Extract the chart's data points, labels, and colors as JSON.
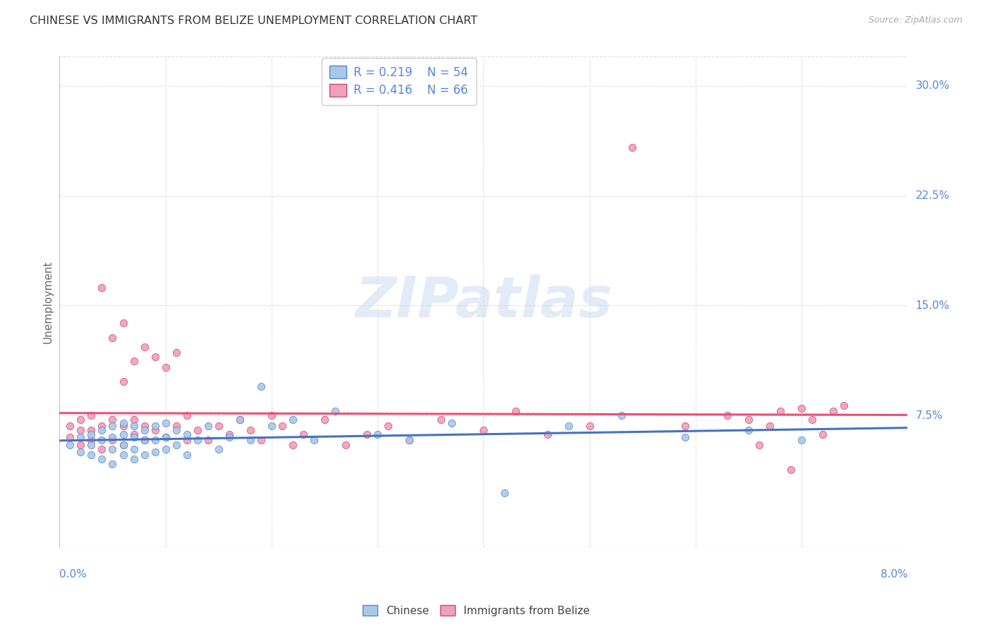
{
  "title": "CHINESE VS IMMIGRANTS FROM BELIZE UNEMPLOYMENT CORRELATION CHART",
  "source": "Source: ZipAtlas.com",
  "ylabel": "Unemployment",
  "ytick_labels": [
    "7.5%",
    "15.0%",
    "22.5%",
    "30.0%"
  ],
  "ytick_values": [
    0.075,
    0.15,
    0.225,
    0.3
  ],
  "xlim": [
    0.0,
    0.08
  ],
  "ylim": [
    -0.015,
    0.32
  ],
  "legend_r1": "0.219",
  "legend_n1": "54",
  "legend_r2": "0.416",
  "legend_n2": "66",
  "color_chinese_fill": "#aac8e8",
  "color_chinese_edge": "#5588cc",
  "color_belize_fill": "#f0a0b8",
  "color_belize_edge": "#d04878",
  "color_line_chinese": "#4472c4",
  "color_line_belize": "#e8507a",
  "color_text_blue": "#5588dd",
  "color_text_dark": "#444444",
  "background_color": "#ffffff",
  "grid_color": "#e0e0e0",
  "chinese_x": [
    0.001,
    0.002,
    0.002,
    0.003,
    0.003,
    0.003,
    0.004,
    0.004,
    0.004,
    0.005,
    0.005,
    0.005,
    0.005,
    0.006,
    0.006,
    0.006,
    0.006,
    0.007,
    0.007,
    0.007,
    0.007,
    0.008,
    0.008,
    0.008,
    0.009,
    0.009,
    0.009,
    0.01,
    0.01,
    0.01,
    0.011,
    0.011,
    0.012,
    0.012,
    0.013,
    0.014,
    0.015,
    0.016,
    0.017,
    0.018,
    0.019,
    0.02,
    0.022,
    0.024,
    0.026,
    0.03,
    0.033,
    0.037,
    0.042,
    0.048,
    0.053,
    0.059,
    0.065,
    0.07
  ],
  "chinese_y": [
    0.055,
    0.05,
    0.06,
    0.048,
    0.055,
    0.062,
    0.045,
    0.058,
    0.065,
    0.042,
    0.052,
    0.06,
    0.068,
    0.048,
    0.055,
    0.062,
    0.07,
    0.045,
    0.052,
    0.06,
    0.068,
    0.048,
    0.058,
    0.065,
    0.05,
    0.058,
    0.068,
    0.052,
    0.06,
    0.07,
    0.055,
    0.065,
    0.048,
    0.062,
    0.058,
    0.068,
    0.052,
    0.06,
    0.072,
    0.058,
    0.095,
    0.068,
    0.072,
    0.058,
    0.078,
    0.062,
    0.058,
    0.07,
    0.022,
    0.068,
    0.075,
    0.06,
    0.065,
    0.058
  ],
  "belize_x": [
    0.001,
    0.001,
    0.002,
    0.002,
    0.002,
    0.003,
    0.003,
    0.003,
    0.004,
    0.004,
    0.004,
    0.005,
    0.005,
    0.005,
    0.006,
    0.006,
    0.006,
    0.006,
    0.007,
    0.007,
    0.007,
    0.008,
    0.008,
    0.008,
    0.009,
    0.009,
    0.01,
    0.01,
    0.011,
    0.011,
    0.012,
    0.012,
    0.013,
    0.014,
    0.015,
    0.016,
    0.017,
    0.018,
    0.019,
    0.02,
    0.021,
    0.022,
    0.023,
    0.025,
    0.027,
    0.029,
    0.031,
    0.033,
    0.036,
    0.04,
    0.043,
    0.046,
    0.05,
    0.054,
    0.059,
    0.063,
    0.065,
    0.066,
    0.067,
    0.068,
    0.069,
    0.07,
    0.071,
    0.072,
    0.073,
    0.074
  ],
  "belize_y": [
    0.06,
    0.068,
    0.055,
    0.065,
    0.072,
    0.058,
    0.065,
    0.075,
    0.052,
    0.068,
    0.162,
    0.058,
    0.072,
    0.128,
    0.055,
    0.068,
    0.098,
    0.138,
    0.062,
    0.072,
    0.112,
    0.058,
    0.068,
    0.122,
    0.065,
    0.115,
    0.06,
    0.108,
    0.068,
    0.118,
    0.058,
    0.075,
    0.065,
    0.058,
    0.068,
    0.062,
    0.072,
    0.065,
    0.058,
    0.075,
    0.068,
    0.055,
    0.062,
    0.072,
    0.055,
    0.062,
    0.068,
    0.058,
    0.072,
    0.065,
    0.078,
    0.062,
    0.068,
    0.258,
    0.068,
    0.075,
    0.072,
    0.055,
    0.068,
    0.078,
    0.038,
    0.08,
    0.072,
    0.062,
    0.078,
    0.082
  ]
}
